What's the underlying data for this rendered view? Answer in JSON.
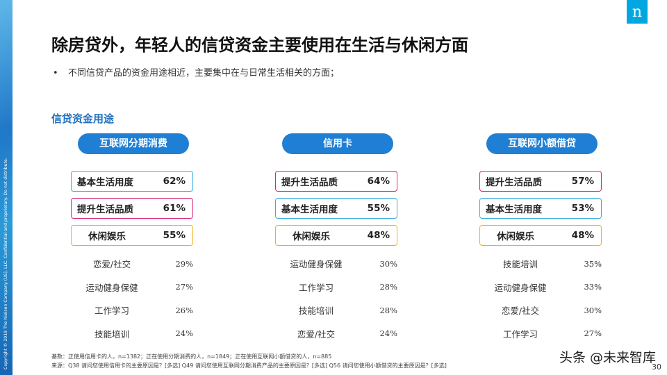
{
  "side_text": "Copyright © 2019 The Nielsen Company (US), LLC. Confidential and proprietary. Do not distribute.",
  "logo": "n",
  "title": "除房贷外，年轻人的信贷资金主要使用在生活与休闲方面",
  "bullet": "不同信贷产品的资金用途相近，主要集中在与日常生活相关的方面；",
  "section_label": "信贷资金用途",
  "colors": {
    "header": "#1f7fd4",
    "box1": "#3aaee0",
    "box2": "#d6287a",
    "box3": "#f2b01e",
    "section": "#1f6fbf"
  },
  "columns": [
    {
      "header": "互联网分期消费",
      "highlights": [
        {
          "label": "基本生活用度",
          "value": "62%"
        },
        {
          "label": "提升生活品质",
          "value": "61%"
        },
        {
          "label": "休闲娱乐",
          "value": "55%"
        }
      ],
      "others": [
        {
          "label": "恋爱/社交",
          "value": "29%"
        },
        {
          "label": "运动健身保健",
          "value": "27%"
        },
        {
          "label": "工作学习",
          "value": "26%"
        },
        {
          "label": "技能培训",
          "value": "24%"
        }
      ]
    },
    {
      "header": "信用卡",
      "highlights": [
        {
          "label": "提升生活品质",
          "value": "64%"
        },
        {
          "label": "基本生活用度",
          "value": "55%"
        },
        {
          "label": "休闲娱乐",
          "value": "48%"
        }
      ],
      "others": [
        {
          "label": "运动健身保健",
          "value": "30%"
        },
        {
          "label": "工作学习",
          "value": "28%"
        },
        {
          "label": "技能培训",
          "value": "28%"
        },
        {
          "label": "恋爱/社交",
          "value": "24%"
        }
      ]
    },
    {
      "header": "互联网小额借贷",
      "highlights": [
        {
          "label": "提升生活品质",
          "value": "57%"
        },
        {
          "label": "基本生活用度",
          "value": "53%"
        },
        {
          "label": "休闲娱乐",
          "value": "48%"
        }
      ],
      "others": [
        {
          "label": "技能培训",
          "value": "35%"
        },
        {
          "label": "运动健身保健",
          "value": "33%"
        },
        {
          "label": "恋爱/社交",
          "value": "30%"
        },
        {
          "label": "工作学习",
          "value": "27%"
        }
      ]
    }
  ],
  "footnote_base": "基数：正使用信用卡的人，n=1382；正在使用分期消费的人，n=1849；正在使用互联网小额借贷的人，n=885",
  "footnote_source": "来源：Q38 请问您使用信用卡的主要原因是？[多选] Q49 请问您使用互联网分期消费产品的主要原因是？[多选] Q56 请问您使用小额借贷的主要原因是？[多选]",
  "watermark": "头条 @未来智库",
  "page_number": "30"
}
